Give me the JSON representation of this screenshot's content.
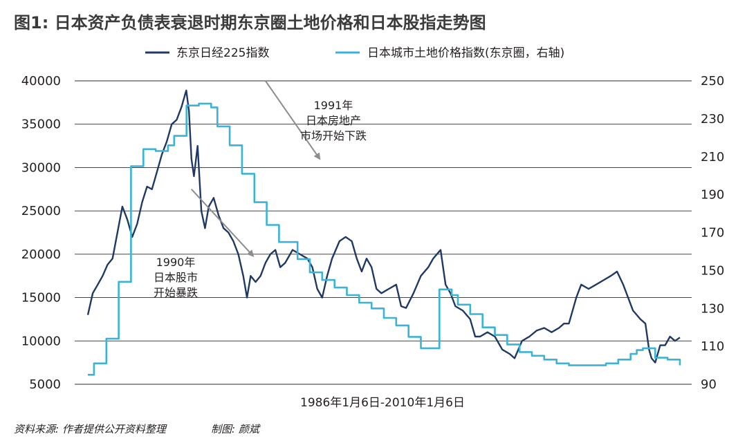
{
  "chart_data": {
    "type": "line",
    "title": "图1: 日本资产负债表衰退时期东京圈土地价格和日本股指走势图",
    "xlabel": "1986年1月6日-2010年1月6日",
    "source": "资料来源: 作者提供公开资料整理",
    "author": "制图: 颜斌",
    "left_axis": {
      "ylim": [
        5000,
        40000
      ],
      "ticks": [
        "40000",
        "35000",
        "30000",
        "25000",
        "20000",
        "15000",
        "10000",
        "5000"
      ]
    },
    "right_axis": {
      "ylim": [
        90,
        250
      ],
      "ticks": [
        "250",
        "230",
        "210",
        "190",
        "170",
        "150",
        "130",
        "110",
        "90"
      ]
    },
    "grid": "horizontal",
    "legend_position": "top",
    "x_range": [
      1986.0,
      2010.0
    ],
    "series": [
      {
        "name": "东京日经225指数",
        "axis": "left",
        "color": "#1f3864",
        "x": [
          1986.0,
          1986.2,
          1986.4,
          1986.6,
          1986.8,
          1987.0,
          1987.2,
          1987.4,
          1987.6,
          1987.8,
          1988.0,
          1988.2,
          1988.4,
          1988.6,
          1988.8,
          1989.0,
          1989.2,
          1989.4,
          1989.6,
          1989.8,
          1989.99,
          1990.1,
          1990.2,
          1990.3,
          1990.45,
          1990.6,
          1990.75,
          1990.9,
          1991.1,
          1991.3,
          1991.5,
          1991.7,
          1991.9,
          1992.1,
          1992.3,
          1992.45,
          1992.6,
          1992.8,
          1993.0,
          1993.2,
          1993.4,
          1993.6,
          1993.8,
          1994.0,
          1994.3,
          1994.6,
          1994.9,
          1995.1,
          1995.3,
          1995.5,
          1995.7,
          1995.9,
          1996.2,
          1996.45,
          1996.7,
          1996.9,
          1997.1,
          1997.3,
          1997.5,
          1997.7,
          1997.9,
          1998.2,
          1998.5,
          1998.7,
          1998.9,
          1999.2,
          1999.5,
          1999.8,
          2000.0,
          2000.3,
          2000.5,
          2000.7,
          2000.9,
          2001.2,
          2001.5,
          2001.7,
          2001.9,
          2002.2,
          2002.5,
          2002.8,
          2003.1,
          2003.3,
          2003.6,
          2003.9,
          2004.2,
          2004.5,
          2004.8,
          2005.1,
          2005.3,
          2005.5,
          2005.8,
          2006.0,
          2006.3,
          2006.6,
          2006.9,
          2007.2,
          2007.45,
          2007.7,
          2007.9,
          2008.1,
          2008.4,
          2008.6,
          2008.75,
          2008.85,
          2009.0,
          2009.2,
          2009.4,
          2009.6,
          2009.8,
          2010.0
        ],
        "values": [
          13000,
          15500,
          16500,
          17500,
          18800,
          19500,
          22500,
          25500,
          24000,
          22000,
          23500,
          26000,
          27800,
          27500,
          29500,
          31500,
          33000,
          35000,
          35500,
          37000,
          38900,
          36500,
          31000,
          29000,
          32500,
          25000,
          23000,
          25500,
          26500,
          24500,
          23000,
          22500,
          21500,
          20000,
          17500,
          15000,
          17500,
          16800,
          17500,
          19000,
          20000,
          20500,
          18500,
          19000,
          20500,
          20000,
          19500,
          18500,
          16000,
          15000,
          17500,
          19500,
          21500,
          22000,
          21500,
          19500,
          18000,
          19500,
          18500,
          16000,
          15500,
          16000,
          16500,
          14000,
          13800,
          15500,
          17500,
          18500,
          19500,
          20500,
          16500,
          15500,
          14000,
          13500,
          12500,
          10500,
          10500,
          11000,
          10500,
          9000,
          8500,
          8000,
          10000,
          10500,
          11200,
          11500,
          11000,
          11500,
          12000,
          12000,
          15000,
          16500,
          16000,
          16500,
          17000,
          17500,
          18000,
          16500,
          15000,
          13500,
          12500,
          12000,
          9000,
          8000,
          7500,
          9500,
          9500,
          10500,
          10000,
          10400
        ]
      },
      {
        "name": "日本城市土地价格指数(东京圈，右轴)",
        "axis": "right",
        "color": "#3ab3d8",
        "step": true,
        "x": [
          1986.0,
          1986.25,
          1986.5,
          1986.75,
          1987.0,
          1987.25,
          1987.5,
          1987.75,
          1988.0,
          1988.25,
          1988.5,
          1988.75,
          1989.0,
          1989.25,
          1989.5,
          1989.75,
          1990.0,
          1990.25,
          1990.5,
          1990.75,
          1991.0,
          1991.25,
          1991.5,
          1991.75,
          1992.0,
          1992.25,
          1992.5,
          1992.75,
          1993.0,
          1993.25,
          1993.5,
          1993.75,
          1994.0,
          1994.5,
          1995.0,
          1995.5,
          1996.0,
          1996.5,
          1997.0,
          1997.5,
          1998.0,
          1998.5,
          1999.0,
          1999.5,
          2000.0,
          2000.25,
          2000.5,
          2000.75,
          2001.0,
          2001.5,
          2002.0,
          2002.5,
          2003.0,
          2003.5,
          2004.0,
          2004.5,
          2005.0,
          2005.5,
          2006.0,
          2006.5,
          2007.0,
          2007.5,
          2008.0,
          2008.25,
          2008.5,
          2009.0,
          2009.5,
          2010.0
        ],
        "values": [
          95,
          101,
          101,
          114,
          114,
          144,
          144,
          205,
          205,
          214,
          214,
          213,
          213,
          216,
          221,
          221,
          237,
          237,
          238,
          238,
          236,
          226,
          226,
          216,
          216,
          201,
          201,
          186,
          186,
          174,
          174,
          165,
          165,
          156,
          149,
          145,
          141,
          137,
          133,
          130,
          125,
          121,
          115,
          109,
          109,
          140,
          140,
          137,
          132,
          127,
          120,
          116,
          111,
          107,
          105,
          103,
          101,
          100,
          100,
          100,
          101,
          103,
          106,
          108,
          109,
          104,
          103,
          100
        ]
      }
    ],
    "annotations": [
      {
        "lines": [
          "1991年",
          "日本房地产",
          "市场开始下跌"
        ],
        "arrow_from": [
          1993.2,
          40000
        ],
        "arrow_to": [
          1995.4,
          31000
        ]
      },
      {
        "lines": [
          "1990年",
          "日本股市",
          "开始暴跌"
        ],
        "arrow_from": [
          1990.2,
          27500
        ],
        "arrow_to": [
          1992.7,
          19800
        ]
      }
    ]
  }
}
